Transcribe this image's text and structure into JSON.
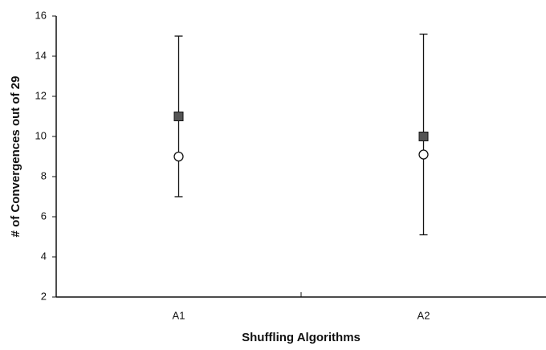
{
  "chart_data": {
    "type": "errorbar",
    "xlabel": "Shuffling Algorithms",
    "ylabel": "# of Convergences out of  29",
    "categories": [
      "A1",
      "A2"
    ],
    "series": [
      {
        "marker": "square",
        "color": "#555555",
        "values": [
          11,
          10
        ]
      },
      {
        "marker": "circle",
        "color": "#ffffff",
        "values": [
          9,
          9.1
        ]
      }
    ],
    "range_low": [
      7,
      5.1
    ],
    "range_high": [
      15,
      15.1
    ],
    "ylim": [
      2,
      16
    ],
    "yticks": [
      2,
      4,
      6,
      8,
      10,
      12,
      14,
      16
    ],
    "grid": false
  }
}
